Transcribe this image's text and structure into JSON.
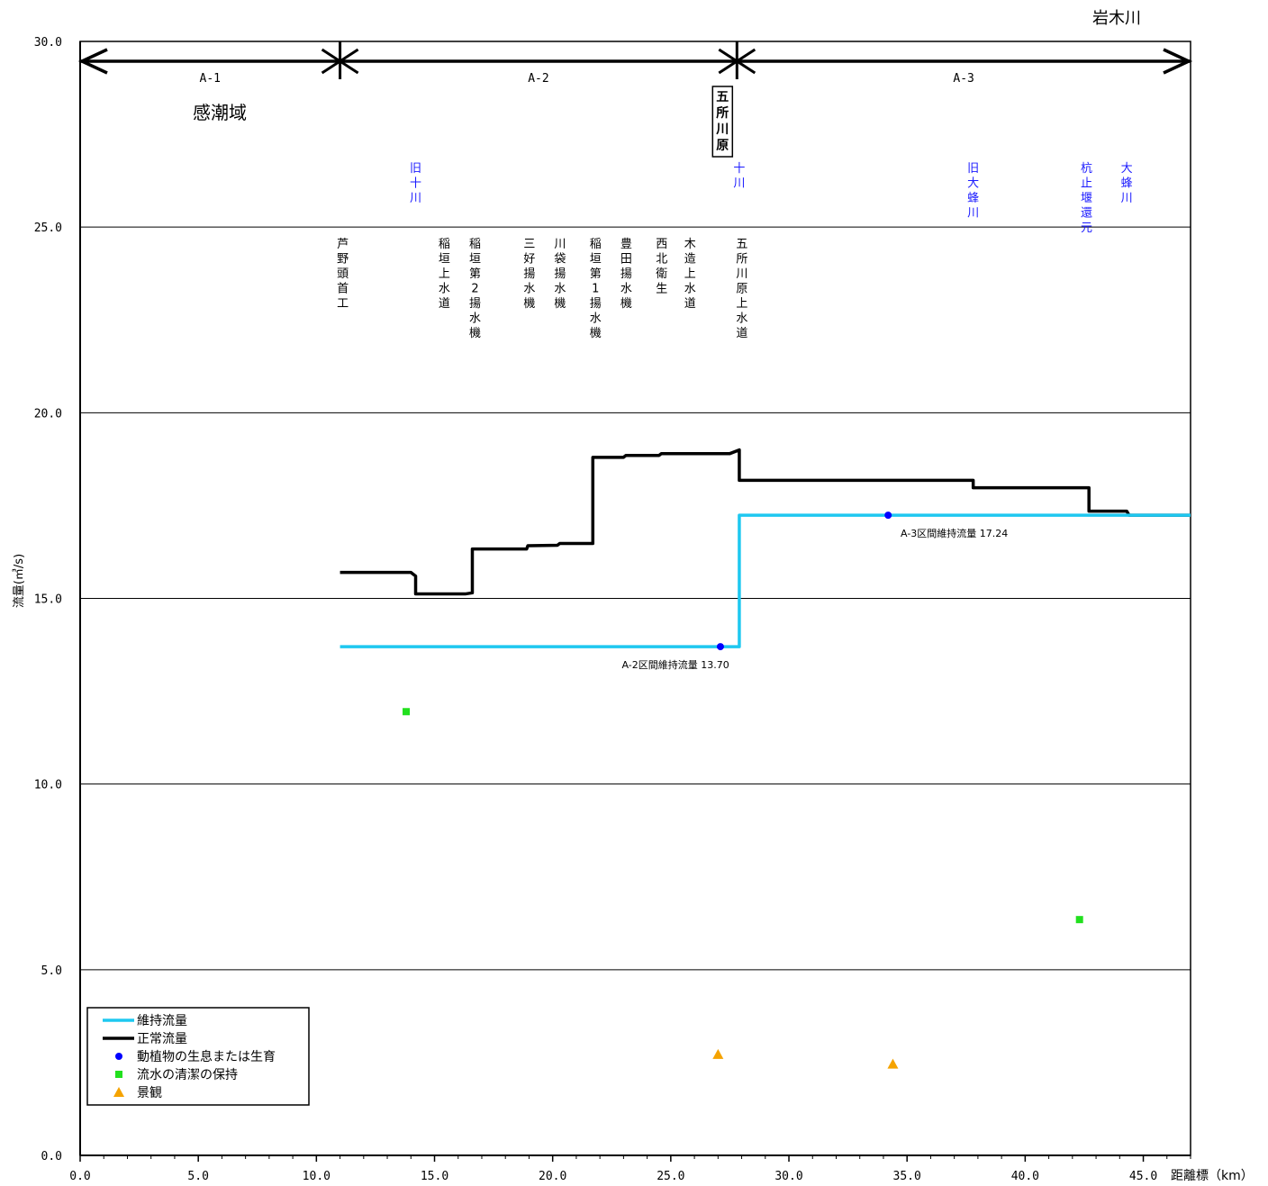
{
  "chart_data": {
    "type": "line",
    "title": "岩木川",
    "xlabel": "距離標（km）",
    "ylabel": "流量(㎥/s)",
    "xlim": [
      0,
      47
    ],
    "ylim": [
      0,
      30
    ],
    "x_ticks": [
      "0.0",
      "5.0",
      "10.0",
      "15.0",
      "20.0",
      "25.0",
      "30.0",
      "35.0",
      "40.0",
      "45.0"
    ],
    "y_ticks": [
      "0.0",
      "5.0",
      "10.0",
      "15.0",
      "20.0",
      "25.0",
      "30.0"
    ],
    "grid": "horizontal",
    "sections": [
      {
        "label": "A-1",
        "from": 0,
        "to": 11.0
      },
      {
        "label": "A-2",
        "from": 11.0,
        "to": 27.8
      },
      {
        "label": "A-3",
        "from": 27.8,
        "to": 47.0
      }
    ],
    "tidal_label": "感潮域",
    "boxed_label": "五所川原",
    "tributaries": [
      {
        "x": 14.2,
        "label": "旧十川"
      },
      {
        "x": 27.9,
        "label": "十川"
      },
      {
        "x": 37.8,
        "label": "旧大蜂川"
      },
      {
        "x": 42.6,
        "label": "杭止堰還元"
      },
      {
        "x": 44.3,
        "label": "大蜂川"
      }
    ],
    "intakes": [
      {
        "x": 11.0,
        "label": "芦野頭首工"
      },
      {
        "x": 15.3,
        "label": "稲垣上水道"
      },
      {
        "x": 16.6,
        "label": "稲垣第2揚水機"
      },
      {
        "x": 18.9,
        "label": "三好揚水機"
      },
      {
        "x": 20.2,
        "label": "川袋揚水機"
      },
      {
        "x": 21.7,
        "label": "稲垣第1揚水機"
      },
      {
        "x": 23.0,
        "label": "豊田揚水機"
      },
      {
        "x": 24.5,
        "label": "西北衛生"
      },
      {
        "x": 25.7,
        "label": "木造上水道"
      },
      {
        "x": 27.9,
        "label": "五所川原上水道"
      }
    ],
    "series": [
      {
        "name": "正常流量",
        "color": "#000000",
        "points": [
          [
            11.0,
            15.7
          ],
          [
            14.0,
            15.7
          ],
          [
            14.2,
            15.6
          ],
          [
            14.2,
            15.12
          ],
          [
            16.3,
            15.12
          ],
          [
            16.6,
            15.15
          ],
          [
            16.6,
            16.33
          ],
          [
            18.9,
            16.33
          ],
          [
            18.95,
            16.42
          ],
          [
            20.2,
            16.43
          ],
          [
            20.3,
            16.48
          ],
          [
            21.7,
            16.48
          ],
          [
            21.7,
            18.8
          ],
          [
            23.0,
            18.8
          ],
          [
            23.1,
            18.85
          ],
          [
            24.5,
            18.85
          ],
          [
            24.6,
            18.9
          ],
          [
            25.7,
            18.9
          ],
          [
            27.5,
            18.9
          ],
          [
            27.9,
            19.0
          ],
          [
            27.9,
            18.18
          ],
          [
            37.8,
            18.18
          ],
          [
            37.8,
            17.98
          ],
          [
            42.7,
            17.98
          ],
          [
            42.7,
            17.35
          ],
          [
            44.3,
            17.35
          ],
          [
            44.4,
            17.24
          ],
          [
            47.0,
            17.24
          ]
        ]
      },
      {
        "name": "維持流量",
        "color": "#1ec8f0",
        "points": [
          [
            11.0,
            13.7
          ],
          [
            27.9,
            13.7
          ],
          [
            27.9,
            17.24
          ],
          [
            47.0,
            17.24
          ]
        ]
      },
      {
        "name": "動植物の生息または生育",
        "type": "scatter",
        "marker": "circle",
        "color": "#0000ff",
        "points": [
          [
            27.1,
            13.7
          ],
          [
            34.2,
            17.24
          ]
        ]
      },
      {
        "name": "流水の清潔の保持",
        "type": "scatter",
        "marker": "square",
        "color": "#22e01e",
        "points": [
          [
            13.8,
            11.95
          ],
          [
            42.3,
            6.35
          ]
        ]
      },
      {
        "name": "景観",
        "type": "scatter",
        "marker": "triangle",
        "color": "#f5a300",
        "points": [
          [
            27.0,
            2.72
          ],
          [
            34.4,
            2.46
          ]
        ]
      }
    ],
    "annotations": [
      {
        "x": 25.2,
        "y": 13.7,
        "text": "A-2区間維持流量 13.70"
      },
      {
        "x": 37.0,
        "y": 17.24,
        "text": "A-3区間維持流量 17.24"
      }
    ],
    "legend": {
      "position": "bottom-left",
      "entries": [
        "維持流量",
        "正常流量",
        "動植物の生息または生育",
        "流水の清潔の保持",
        "景観"
      ]
    }
  }
}
